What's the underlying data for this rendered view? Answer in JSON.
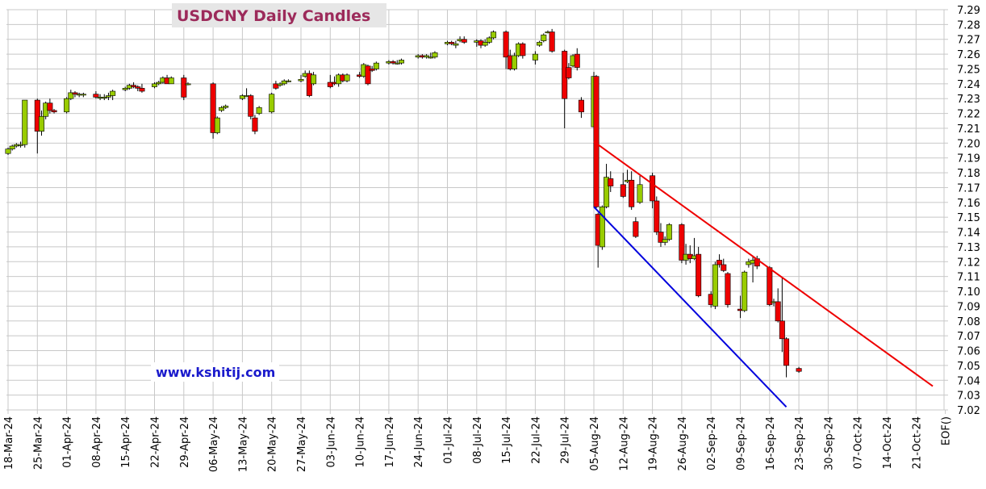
{
  "chart_data": {
    "type": "candlestick",
    "title": "USDCNY Daily Candles",
    "watermark": "www.kshitij.com",
    "y_ticks": [
      "7.29",
      "7.28",
      "7.27",
      "7.26",
      "7.25",
      "7.24",
      "7.23",
      "7.22",
      "7.21",
      "7.20",
      "7.19",
      "7.18",
      "7.17",
      "7.16",
      "7.15",
      "7.14",
      "7.13",
      "7.12",
      "7.11",
      "7.10",
      "7.09",
      "7.08",
      "7.07",
      "7.06",
      "7.05",
      "7.04",
      "7.03",
      "7.02"
    ],
    "ylim": [
      7.02,
      7.29
    ],
    "x_ticks": [
      "18-Mar-24",
      "25-Mar-24",
      "01-Apr-24",
      "08-Apr-24",
      "15-Apr-24",
      "22-Apr-24",
      "29-Apr-24",
      "06-May-24",
      "13-May-24",
      "20-May-24",
      "27-May-24",
      "03-Jun-24",
      "10-Jun-24",
      "17-Jun-24",
      "24-Jun-24",
      "01-Jul-24",
      "08-Jul-24",
      "15-Jul-24",
      "22-Jul-24",
      "29-Jul-24",
      "05-Aug-24",
      "12-Aug-24",
      "19-Aug-24",
      "26-Aug-24",
      "02-Sep-24",
      "09-Sep-24",
      "16-Sep-24",
      "23-Sep-24",
      "30-Sep-24",
      "07-Oct-24",
      "14-Oct-24",
      "21-Oct-24",
      "EOF()"
    ],
    "grid": true,
    "colors": {
      "up": "#99cc00",
      "down": "#ee0000",
      "outline": "#000000",
      "grid": "#c8c8c8",
      "resistance_line": "#ee0000",
      "support_line": "#0000dd"
    },
    "trendlines": [
      {
        "name": "resistance",
        "color": "#ee0000",
        "start": {
          "date": "2024-08-05",
          "value": 7.201
        },
        "end": {
          "date": "2024-10-25",
          "value": 7.036
        }
      },
      {
        "name": "support",
        "color": "#0000dd",
        "start": {
          "date": "2024-08-05",
          "value": 7.157
        },
        "end": {
          "date": "2024-09-20",
          "value": 7.022
        }
      }
    ],
    "candles": [
      {
        "date": "2024-03-18",
        "o": 7.193,
        "h": 7.197,
        "l": 7.192,
        "c": 7.196
      },
      {
        "date": "2024-03-19",
        "o": 7.196,
        "h": 7.199,
        "l": 7.195,
        "c": 7.198
      },
      {
        "date": "2024-03-20",
        "o": 7.198,
        "h": 7.2,
        "l": 7.197,
        "c": 7.199
      },
      {
        "date": "2024-03-21",
        "o": 7.199,
        "h": 7.201,
        "l": 7.197,
        "c": 7.199
      },
      {
        "date": "2024-03-22",
        "o": 7.199,
        "h": 7.229,
        "l": 7.197,
        "c": 7.229
      },
      {
        "date": "2024-03-25",
        "o": 7.229,
        "h": 7.23,
        "l": 7.193,
        "c": 7.208
      },
      {
        "date": "2024-03-26",
        "o": 7.208,
        "h": 7.222,
        "l": 7.205,
        "c": 7.218
      },
      {
        "date": "2024-03-27",
        "o": 7.218,
        "h": 7.228,
        "l": 7.216,
        "c": 7.227
      },
      {
        "date": "2024-03-28",
        "o": 7.227,
        "h": 7.23,
        "l": 7.22,
        "c": 7.222
      },
      {
        "date": "2024-03-29",
        "o": 7.222,
        "h": 7.223,
        "l": 7.22,
        "c": 7.221
      },
      {
        "date": "2024-04-01",
        "o": 7.221,
        "h": 7.231,
        "l": 7.22,
        "c": 7.23
      },
      {
        "date": "2024-04-02",
        "o": 7.23,
        "h": 7.236,
        "l": 7.229,
        "c": 7.234
      },
      {
        "date": "2024-04-03",
        "o": 7.234,
        "h": 7.235,
        "l": 7.231,
        "c": 7.233
      },
      {
        "date": "2024-04-04",
        "o": 7.233,
        "h": 7.234,
        "l": 7.231,
        "c": 7.233
      },
      {
        "date": "2024-04-05",
        "o": 7.233,
        "h": 7.234,
        "l": 7.231,
        "c": 7.233
      },
      {
        "date": "2024-04-08",
        "o": 7.233,
        "h": 7.235,
        "l": 7.23,
        "c": 7.231
      },
      {
        "date": "2024-04-09",
        "o": 7.231,
        "h": 7.233,
        "l": 7.229,
        "c": 7.231
      },
      {
        "date": "2024-04-10",
        "o": 7.231,
        "h": 7.233,
        "l": 7.229,
        "c": 7.231
      },
      {
        "date": "2024-04-11",
        "o": 7.231,
        "h": 7.234,
        "l": 7.229,
        "c": 7.232
      },
      {
        "date": "2024-04-12",
        "o": 7.232,
        "h": 7.236,
        "l": 7.229,
        "c": 7.235
      },
      {
        "date": "2024-04-15",
        "o": 7.236,
        "h": 7.238,
        "l": 7.235,
        "c": 7.237
      },
      {
        "date": "2024-04-16",
        "o": 7.237,
        "h": 7.24,
        "l": 7.236,
        "c": 7.239
      },
      {
        "date": "2024-04-17",
        "o": 7.239,
        "h": 7.241,
        "l": 7.237,
        "c": 7.238
      },
      {
        "date": "2024-04-18",
        "o": 7.238,
        "h": 7.239,
        "l": 7.235,
        "c": 7.237
      },
      {
        "date": "2024-04-19",
        "o": 7.237,
        "h": 7.24,
        "l": 7.234,
        "c": 7.235
      },
      {
        "date": "2024-04-22",
        "o": 7.238,
        "h": 7.241,
        "l": 7.237,
        "c": 7.24
      },
      {
        "date": "2024-04-23",
        "o": 7.24,
        "h": 7.242,
        "l": 7.239,
        "c": 7.241
      },
      {
        "date": "2024-04-24",
        "o": 7.241,
        "h": 7.245,
        "l": 7.24,
        "c": 7.244
      },
      {
        "date": "2024-04-25",
        "o": 7.244,
        "h": 7.246,
        "l": 7.24,
        "c": 7.24
      },
      {
        "date": "2024-04-26",
        "o": 7.24,
        "h": 7.245,
        "l": 7.24,
        "c": 7.244
      },
      {
        "date": "2024-04-29",
        "o": 7.244,
        "h": 7.246,
        "l": 7.229,
        "c": 7.231
      },
      {
        "date": "2024-04-30",
        "o": 7.24,
        "h": 7.241,
        "l": 7.239,
        "c": 7.24
      },
      {
        "date": "2024-05-06",
        "o": 7.24,
        "h": 7.241,
        "l": 7.203,
        "c": 7.207
      },
      {
        "date": "2024-05-07",
        "o": 7.207,
        "h": 7.218,
        "l": 7.206,
        "c": 7.217
      },
      {
        "date": "2024-05-08",
        "o": 7.222,
        "h": 7.225,
        "l": 7.221,
        "c": 7.224
      },
      {
        "date": "2024-05-09",
        "o": 7.224,
        "h": 7.226,
        "l": 7.223,
        "c": 7.225
      },
      {
        "date": "2024-05-13",
        "o": 7.23,
        "h": 7.233,
        "l": 7.229,
        "c": 7.232
      },
      {
        "date": "2024-05-14",
        "o": 7.232,
        "h": 7.237,
        "l": 7.231,
        "c": 7.232
      },
      {
        "date": "2024-05-15",
        "o": 7.232,
        "h": 7.233,
        "l": 7.216,
        "c": 7.218
      },
      {
        "date": "2024-05-16",
        "o": 7.217,
        "h": 7.219,
        "l": 7.206,
        "c": 7.208
      },
      {
        "date": "2024-05-17",
        "o": 7.22,
        "h": 7.225,
        "l": 7.219,
        "c": 7.224
      },
      {
        "date": "2024-05-20",
        "o": 7.221,
        "h": 7.234,
        "l": 7.22,
        "c": 7.233
      },
      {
        "date": "2024-05-21",
        "o": 7.24,
        "h": 7.242,
        "l": 7.236,
        "c": 7.237
      },
      {
        "date": "2024-05-22",
        "o": 7.239,
        "h": 7.241,
        "l": 7.238,
        "c": 7.24
      },
      {
        "date": "2024-05-23",
        "o": 7.24,
        "h": 7.243,
        "l": 7.239,
        "c": 7.242
      },
      {
        "date": "2024-05-24",
        "o": 7.242,
        "h": 7.243,
        "l": 7.241,
        "c": 7.242
      },
      {
        "date": "2024-05-27",
        "o": 7.242,
        "h": 7.246,
        "l": 7.241,
        "c": 7.243
      },
      {
        "date": "2024-05-28",
        "o": 7.245,
        "h": 7.249,
        "l": 7.244,
        "c": 7.247
      },
      {
        "date": "2024-05-29",
        "o": 7.247,
        "h": 7.249,
        "l": 7.231,
        "c": 7.232
      },
      {
        "date": "2024-05-30",
        "o": 7.24,
        "h": 7.248,
        "l": 7.239,
        "c": 7.246
      },
      {
        "date": "2024-06-03",
        "o": 7.241,
        "h": 7.246,
        "l": 7.237,
        "c": 7.238
      },
      {
        "date": "2024-06-04",
        "o": 7.241,
        "h": 7.245,
        "l": 7.239,
        "c": 7.24
      },
      {
        "date": "2024-06-05",
        "o": 7.24,
        "h": 7.247,
        "l": 7.238,
        "c": 7.246
      },
      {
        "date": "2024-06-06",
        "o": 7.246,
        "h": 7.247,
        "l": 7.241,
        "c": 7.242
      },
      {
        "date": "2024-06-07",
        "o": 7.242,
        "h": 7.247,
        "l": 7.241,
        "c": 7.246
      },
      {
        "date": "2024-06-10",
        "o": 7.246,
        "h": 7.248,
        "l": 7.244,
        "c": 7.245
      },
      {
        "date": "2024-06-11",
        "o": 7.245,
        "h": 7.254,
        "l": 7.244,
        "c": 7.253
      },
      {
        "date": "2024-06-12",
        "o": 7.252,
        "h": 7.253,
        "l": 7.239,
        "c": 7.24
      },
      {
        "date": "2024-06-13",
        "o": 7.25,
        "h": 7.252,
        "l": 7.248,
        "c": 7.249
      },
      {
        "date": "2024-06-14",
        "o": 7.25,
        "h": 7.255,
        "l": 7.249,
        "c": 7.254
      },
      {
        "date": "2024-06-17",
        "o": 7.254,
        "h": 7.256,
        "l": 7.253,
        "c": 7.255
      },
      {
        "date": "2024-06-18",
        "o": 7.255,
        "h": 7.256,
        "l": 7.253,
        "c": 7.254
      },
      {
        "date": "2024-06-19",
        "o": 7.254,
        "h": 7.256,
        "l": 7.253,
        "c": 7.254
      },
      {
        "date": "2024-06-20",
        "o": 7.254,
        "h": 7.257,
        "l": 7.253,
        "c": 7.256
      },
      {
        "date": "2024-06-24",
        "o": 7.258,
        "h": 7.26,
        "l": 7.257,
        "c": 7.259
      },
      {
        "date": "2024-06-25",
        "o": 7.259,
        "h": 7.26,
        "l": 7.257,
        "c": 7.258
      },
      {
        "date": "2024-06-26",
        "o": 7.258,
        "h": 7.26,
        "l": 7.257,
        "c": 7.259
      },
      {
        "date": "2024-06-27",
        "o": 7.258,
        "h": 7.261,
        "l": 7.257,
        "c": 7.258
      },
      {
        "date": "2024-06-28",
        "o": 7.258,
        "h": 7.262,
        "l": 7.257,
        "c": 7.261
      },
      {
        "date": "2024-07-01",
        "o": 7.267,
        "h": 7.269,
        "l": 7.266,
        "c": 7.268
      },
      {
        "date": "2024-07-02",
        "o": 7.268,
        "h": 7.269,
        "l": 7.266,
        "c": 7.267
      },
      {
        "date": "2024-07-03",
        "o": 7.266,
        "h": 7.269,
        "l": 7.264,
        "c": 7.267
      },
      {
        "date": "2024-07-04",
        "o": 7.269,
        "h": 7.272,
        "l": 7.268,
        "c": 7.27
      },
      {
        "date": "2024-07-05",
        "o": 7.27,
        "h": 7.272,
        "l": 7.267,
        "c": 7.268
      },
      {
        "date": "2024-07-08",
        "o": 7.268,
        "h": 7.27,
        "l": 7.265,
        "c": 7.269
      },
      {
        "date": "2024-07-09",
        "o": 7.269,
        "h": 7.27,
        "l": 7.264,
        "c": 7.266
      },
      {
        "date": "2024-07-10",
        "o": 7.266,
        "h": 7.27,
        "l": 7.265,
        "c": 7.268
      },
      {
        "date": "2024-07-11",
        "o": 7.268,
        "h": 7.272,
        "l": 7.267,
        "c": 7.271
      },
      {
        "date": "2024-07-12",
        "o": 7.271,
        "h": 7.276,
        "l": 7.27,
        "c": 7.275
      },
      {
        "date": "2024-07-15",
        "o": 7.275,
        "h": 7.276,
        "l": 7.25,
        "c": 7.258
      },
      {
        "date": "2024-07-16",
        "o": 7.259,
        "h": 7.263,
        "l": 7.249,
        "c": 7.25
      },
      {
        "date": "2024-07-17",
        "o": 7.25,
        "h": 7.261,
        "l": 7.249,
        "c": 7.259
      },
      {
        "date": "2024-07-18",
        "o": 7.259,
        "h": 7.268,
        "l": 7.258,
        "c": 7.267
      },
      {
        "date": "2024-07-19",
        "o": 7.267,
        "h": 7.268,
        "l": 7.257,
        "c": 7.259
      },
      {
        "date": "2024-07-22",
        "o": 7.256,
        "h": 7.262,
        "l": 7.253,
        "c": 7.26
      },
      {
        "date": "2024-07-23",
        "o": 7.266,
        "h": 7.269,
        "l": 7.265,
        "c": 7.268
      },
      {
        "date": "2024-07-24",
        "o": 7.269,
        "h": 7.274,
        "l": 7.268,
        "c": 7.273
      },
      {
        "date": "2024-07-25",
        "o": 7.275,
        "h": 7.276,
        "l": 7.274,
        "c": 7.275
      },
      {
        "date": "2024-07-26",
        "o": 7.275,
        "h": 7.277,
        "l": 7.261,
        "c": 7.262
      },
      {
        "date": "2024-07-29",
        "o": 7.262,
        "h": 7.263,
        "l": 7.21,
        "c": 7.23
      },
      {
        "date": "2024-07-30",
        "o": 7.251,
        "h": 7.254,
        "l": 7.243,
        "c": 7.244
      },
      {
        "date": "2024-07-31",
        "o": 7.252,
        "h": 7.26,
        "l": 7.251,
        "c": 7.259
      },
      {
        "date": "2024-08-01",
        "o": 7.26,
        "h": 7.264,
        "l": 7.249,
        "c": 7.251
      },
      {
        "date": "2024-08-02",
        "o": 7.229,
        "h": 7.231,
        "l": 7.217,
        "c": 7.221
      },
      {
        "date": "2024-08-05",
        "o": 7.211,
        "h": 7.248,
        "l": 7.21,
        "c": 7.245
      },
      {
        "date": "2024-08-05",
        "o": 7.245,
        "h": 7.246,
        "l": 7.156,
        "c": 7.157
      },
      {
        "date": "2024-08-06",
        "o": 7.152,
        "h": 7.153,
        "l": 7.116,
        "c": 7.131
      },
      {
        "date": "2024-08-07",
        "o": 7.13,
        "h": 7.158,
        "l": 7.128,
        "c": 7.157
      },
      {
        "date": "2024-08-08",
        "o": 7.157,
        "h": 7.186,
        "l": 7.156,
        "c": 7.177
      },
      {
        "date": "2024-08-09",
        "o": 7.176,
        "h": 7.181,
        "l": 7.167,
        "c": 7.171
      },
      {
        "date": "2024-08-12",
        "o": 7.172,
        "h": 7.18,
        "l": 7.163,
        "c": 7.164
      },
      {
        "date": "2024-08-13",
        "o": 7.174,
        "h": 7.182,
        "l": 7.173,
        "c": 7.175
      },
      {
        "date": "2024-08-14",
        "o": 7.175,
        "h": 7.181,
        "l": 7.155,
        "c": 7.157
      },
      {
        "date": "2024-08-15",
        "o": 7.147,
        "h": 7.15,
        "l": 7.136,
        "c": 7.137
      },
      {
        "date": "2024-08-16",
        "o": 7.16,
        "h": 7.178,
        "l": 7.159,
        "c": 7.172
      },
      {
        "date": "2024-08-19",
        "o": 7.178,
        "h": 7.18,
        "l": 7.156,
        "c": 7.161
      },
      {
        "date": "2024-08-20",
        "o": 7.161,
        "h": 7.164,
        "l": 7.138,
        "c": 7.14
      },
      {
        "date": "2024-08-21",
        "o": 7.14,
        "h": 7.146,
        "l": 7.13,
        "c": 7.133
      },
      {
        "date": "2024-08-22",
        "o": 7.133,
        "h": 7.137,
        "l": 7.131,
        "c": 7.135
      },
      {
        "date": "2024-08-23",
        "o": 7.135,
        "h": 7.146,
        "l": 7.134,
        "c": 7.145
      },
      {
        "date": "2024-08-26",
        "o": 7.145,
        "h": 7.146,
        "l": 7.119,
        "c": 7.121
      },
      {
        "date": "2024-08-27",
        "o": 7.121,
        "h": 7.132,
        "l": 7.118,
        "c": 7.125
      },
      {
        "date": "2024-08-28",
        "o": 7.125,
        "h": 7.131,
        "l": 7.119,
        "c": 7.122
      },
      {
        "date": "2024-08-29",
        "o": 7.122,
        "h": 7.136,
        "l": 7.121,
        "c": 7.124
      },
      {
        "date": "2024-08-30",
        "o": 7.125,
        "h": 7.13,
        "l": 7.096,
        "c": 7.097
      },
      {
        "date": "2024-09-02",
        "o": 7.098,
        "h": 7.1,
        "l": 7.089,
        "c": 7.091
      },
      {
        "date": "2024-09-03",
        "o": 7.09,
        "h": 7.12,
        "l": 7.088,
        "c": 7.118
      },
      {
        "date": "2024-09-04",
        "o": 7.121,
        "h": 7.125,
        "l": 7.116,
        "c": 7.118
      },
      {
        "date": "2024-09-05",
        "o": 7.118,
        "h": 7.122,
        "l": 7.113,
        "c": 7.114
      },
      {
        "date": "2024-09-06",
        "o": 7.112,
        "h": 7.113,
        "l": 7.089,
        "c": 7.091
      },
      {
        "date": "2024-09-09",
        "o": 7.088,
        "h": 7.097,
        "l": 7.082,
        "c": 7.087
      },
      {
        "date": "2024-09-10",
        "o": 7.087,
        "h": 7.114,
        "l": 7.086,
        "c": 7.113
      },
      {
        "date": "2024-09-11",
        "o": 7.118,
        "h": 7.122,
        "l": 7.116,
        "c": 7.12
      },
      {
        "date": "2024-09-12",
        "o": 7.119,
        "h": 7.124,
        "l": 7.106,
        "c": 7.121
      },
      {
        "date": "2024-09-13",
        "o": 7.122,
        "h": 7.124,
        "l": 7.115,
        "c": 7.117
      },
      {
        "date": "2024-09-16",
        "o": 7.116,
        "h": 7.117,
        "l": 7.09,
        "c": 7.091
      },
      {
        "date": "2024-09-17",
        "o": 7.093,
        "h": 7.095,
        "l": 7.09,
        "c": 7.093
      },
      {
        "date": "2024-09-18",
        "o": 7.093,
        "h": 7.102,
        "l": 7.079,
        "c": 7.08
      },
      {
        "date": "2024-09-19",
        "o": 7.08,
        "h": 7.109,
        "l": 7.059,
        "c": 7.068
      },
      {
        "date": "2024-09-20",
        "o": 7.068,
        "h": 7.069,
        "l": 7.042,
        "c": 7.05
      },
      {
        "date": "2024-09-23",
        "o": 7.048,
        "h": 7.049,
        "l": 7.045,
        "c": 7.046
      }
    ]
  }
}
